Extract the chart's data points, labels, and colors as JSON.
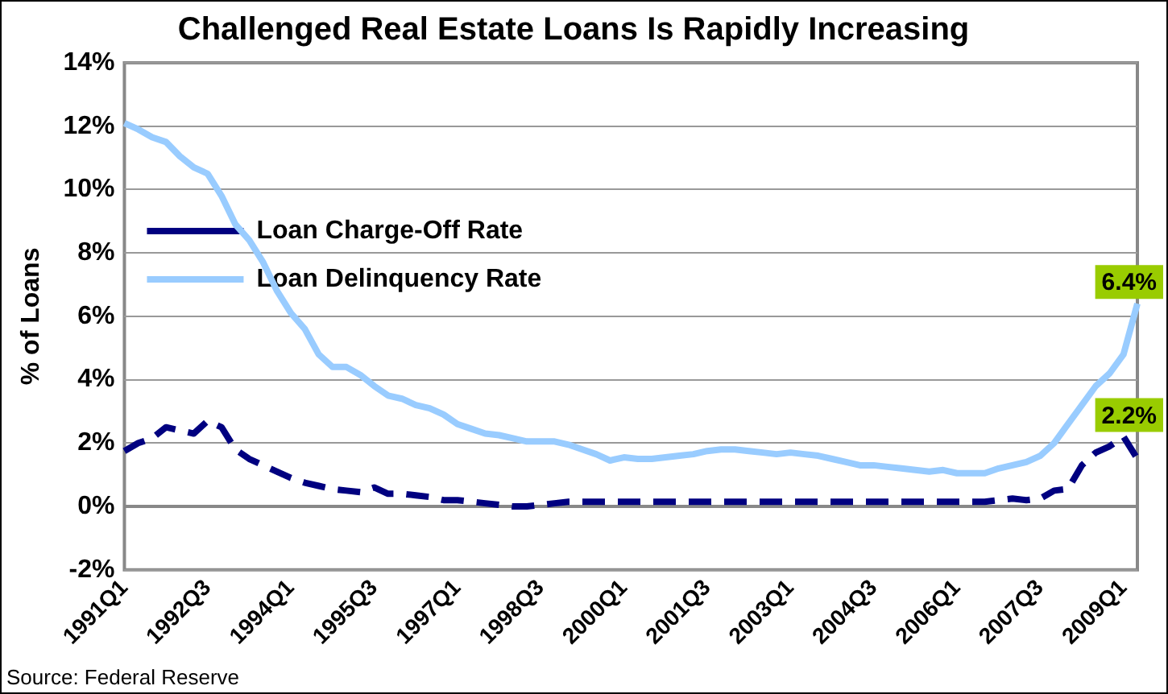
{
  "chart_data": {
    "type": "line",
    "title": "Challenged Real Estate Loans Is Rapidly Increasing",
    "ylabel": "% of Loans",
    "annotations": [
      "Source: Federal Reserve"
    ],
    "categories": [
      "1991Q1",
      null,
      null,
      null,
      null,
      null,
      "1992Q3",
      null,
      null,
      null,
      null,
      null,
      "1994Q1",
      null,
      null,
      null,
      null,
      null,
      "1995Q3",
      null,
      null,
      null,
      null,
      null,
      "1997Q1",
      null,
      null,
      null,
      null,
      null,
      "1998Q3",
      null,
      null,
      null,
      null,
      null,
      "2000Q1",
      null,
      null,
      null,
      null,
      null,
      "2001Q3",
      null,
      null,
      null,
      null,
      null,
      "2003Q1",
      null,
      null,
      null,
      null,
      null,
      "2004Q3",
      null,
      null,
      null,
      null,
      null,
      "2006Q1",
      null,
      null,
      null,
      null,
      null,
      "2007Q3",
      null,
      null,
      null,
      null,
      null,
      "2009Q1",
      null
    ],
    "series": [
      {
        "name": "Loan Charge-Off Rate",
        "color": "#000080",
        "line_style": "dashed",
        "values": [
          1.75,
          2.0,
          2.15,
          2.5,
          2.4,
          2.3,
          2.7,
          2.5,
          1.8,
          1.5,
          1.3,
          1.1,
          0.9,
          0.75,
          0.65,
          0.55,
          0.5,
          0.45,
          0.6,
          0.4,
          0.4,
          0.35,
          0.3,
          0.2,
          0.2,
          0.15,
          0.1,
          0.05,
          0,
          0,
          0.05,
          0.1,
          0.15,
          0.15,
          0.15,
          0.15,
          0.15,
          0.15,
          0.15,
          0.15,
          0.15,
          0.15,
          0.15,
          0.15,
          0.15,
          0.15,
          0.15,
          0.15,
          0.15,
          0.15,
          0.15,
          0.15,
          0.15,
          0.15,
          0.15,
          0.15,
          0.15,
          0.15,
          0.15,
          0.15,
          0.15,
          0.15,
          0.15,
          0.2,
          0.25,
          0.2,
          0.25,
          0.5,
          0.55,
          1.3,
          1.7,
          1.9,
          2.2,
          1.5
        ],
        "value_labels": [
          null,
          null,
          null,
          null,
          null,
          null,
          null,
          null,
          null,
          null,
          null,
          null,
          null,
          null,
          null,
          null,
          null,
          null,
          null,
          null,
          null,
          null,
          null,
          null,
          null,
          null,
          null,
          null,
          null,
          null,
          null,
          null,
          null,
          null,
          null,
          null,
          null,
          null,
          null,
          null,
          null,
          null,
          null,
          null,
          null,
          null,
          null,
          null,
          null,
          null,
          null,
          null,
          null,
          null,
          null,
          null,
          null,
          null,
          null,
          null,
          null,
          null,
          null,
          null,
          null,
          null,
          null,
          null,
          null,
          null,
          null,
          null,
          "2.2%",
          null
        ]
      },
      {
        "name": "Loan Delinquency Rate",
        "color": "#99ccff",
        "line_style": "solid",
        "values": [
          12.1,
          11.9,
          11.65,
          11.5,
          11.05,
          10.7,
          10.5,
          9.8,
          8.9,
          8.4,
          7.7,
          6.8,
          6.1,
          5.6,
          4.8,
          4.4,
          4.4,
          4.15,
          3.8,
          3.5,
          3.4,
          3.2,
          3.1,
          2.9,
          2.6,
          2.45,
          2.3,
          2.25,
          2.15,
          2.05,
          2.05,
          2.05,
          1.95,
          1.8,
          1.65,
          1.45,
          1.55,
          1.5,
          1.5,
          1.55,
          1.6,
          1.65,
          1.75,
          1.8,
          1.8,
          1.75,
          1.7,
          1.65,
          1.7,
          1.65,
          1.6,
          1.5,
          1.4,
          1.3,
          1.3,
          1.25,
          1.2,
          1.15,
          1.1,
          1.15,
          1.05,
          1.05,
          1.05,
          1.2,
          1.3,
          1.4,
          1.6,
          2.0,
          2.6,
          3.2,
          3.8,
          4.2,
          4.8,
          6.4
        ],
        "value_labels": [
          null,
          null,
          null,
          null,
          null,
          null,
          null,
          null,
          null,
          null,
          null,
          null,
          null,
          null,
          null,
          null,
          null,
          null,
          null,
          null,
          null,
          null,
          null,
          null,
          null,
          null,
          null,
          null,
          null,
          null,
          null,
          null,
          null,
          null,
          null,
          null,
          null,
          null,
          null,
          null,
          null,
          null,
          null,
          null,
          null,
          null,
          null,
          null,
          null,
          null,
          null,
          null,
          null,
          null,
          null,
          null,
          null,
          null,
          null,
          null,
          null,
          null,
          null,
          null,
          null,
          null,
          null,
          null,
          null,
          null,
          null,
          null,
          null,
          "6.4%"
        ]
      }
    ],
    "ylim": [
      -2,
      14
    ],
    "yticks": [
      {
        "value": -2,
        "label": "-2%"
      },
      {
        "value": 0,
        "label": "0%"
      },
      {
        "value": 2,
        "label": "2%"
      },
      {
        "value": 4,
        "label": "4%"
      },
      {
        "value": 6,
        "label": "6%"
      },
      {
        "value": 8,
        "label": "8%"
      },
      {
        "value": 10,
        "label": "10%"
      },
      {
        "value": 12,
        "label": "12%"
      },
      {
        "value": 14,
        "label": "14%"
      }
    ],
    "grid": "y",
    "legend": "top",
    "marker": "none"
  }
}
